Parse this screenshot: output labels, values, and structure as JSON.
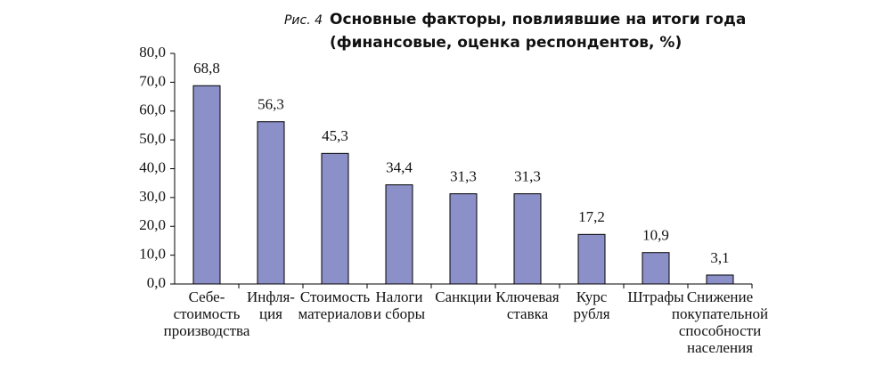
{
  "chart_data": {
    "type": "bar",
    "figure_label": "Рис. 4",
    "title": "Основные факторы, повлиявшие на итоги года\n(финансовые, оценка респондентов, %)",
    "categories": [
      "Себе-\nстоимость\nпроизводства",
      "Инфля-\nция",
      "Стоимость\nматериалов",
      "Налоги\nи сборы",
      "Санкции",
      "Ключевая\nставка",
      "Курс\nрубля",
      "Штрафы",
      "Снижение\nпокупательной\nспособности\nнаселения"
    ],
    "values": [
      68.8,
      56.3,
      45.3,
      34.4,
      31.3,
      31.3,
      17.2,
      10.9,
      3.1
    ],
    "value_labels": [
      "68,8",
      "56,3",
      "45,3",
      "34,4",
      "31,3",
      "31,3",
      "17,2",
      "10,9",
      "3,1"
    ],
    "color": "#8b91c8",
    "ylim": [
      0,
      80
    ],
    "yticks": [
      {
        "value": 0,
        "label": "0,0"
      },
      {
        "value": 10,
        "label": "10,0"
      },
      {
        "value": 20,
        "label": "20,0"
      },
      {
        "value": 30,
        "label": "30,0"
      },
      {
        "value": 40,
        "label": "40,0"
      },
      {
        "value": 50,
        "label": "50,0"
      },
      {
        "value": 60,
        "label": "60,0"
      },
      {
        "value": 70,
        "label": "70,0"
      },
      {
        "value": 80,
        "label": "80,0"
      }
    ],
    "grid": false
  }
}
